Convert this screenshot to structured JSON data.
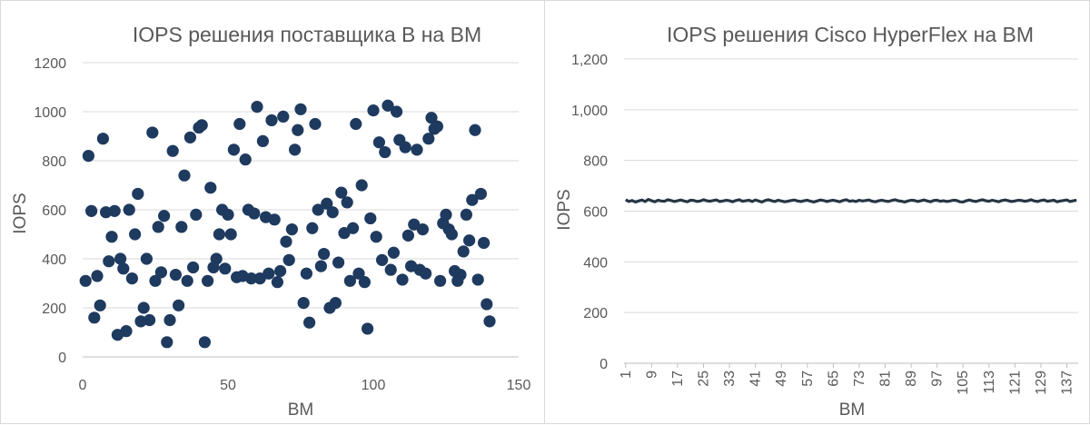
{
  "chart_data": [
    {
      "type": "scatter",
      "title": "IOPS решения поставщика B на ВМ",
      "xlabel": "ВМ",
      "ylabel": "IOPS",
      "xlim": [
        0,
        150
      ],
      "ylim": [
        0,
        1200
      ],
      "x_ticks": [
        "0",
        "50",
        "100",
        "150"
      ],
      "y_ticks": [
        "0",
        "200",
        "400",
        "600",
        "800",
        "1000",
        "1200"
      ],
      "grid": true,
      "marker_color": "#1f3a5f",
      "series": [
        {
          "points": [
            [
              1,
              310
            ],
            [
              2,
              820
            ],
            [
              3,
              595
            ],
            [
              4,
              160
            ],
            [
              5,
              330
            ],
            [
              6,
              210
            ],
            [
              7,
              890
            ],
            [
              8,
              590
            ],
            [
              9,
              390
            ],
            [
              10,
              490
            ],
            [
              11,
              595
            ],
            [
              12,
              90
            ],
            [
              13,
              400
            ],
            [
              14,
              360
            ],
            [
              15,
              105
            ],
            [
              16,
              600
            ],
            [
              17,
              320
            ],
            [
              18,
              500
            ],
            [
              19,
              665
            ],
            [
              20,
              145
            ],
            [
              21,
              200
            ],
            [
              22,
              400
            ],
            [
              23,
              150
            ],
            [
              24,
              915
            ],
            [
              25,
              310
            ],
            [
              26,
              530
            ],
            [
              27,
              345
            ],
            [
              28,
              575
            ],
            [
              29,
              60
            ],
            [
              30,
              150
            ],
            [
              31,
              840
            ],
            [
              32,
              335
            ],
            [
              33,
              210
            ],
            [
              34,
              530
            ],
            [
              35,
              740
            ],
            [
              36,
              310
            ],
            [
              37,
              895
            ],
            [
              38,
              365
            ],
            [
              39,
              580
            ],
            [
              40,
              935
            ],
            [
              41,
              945
            ],
            [
              42,
              60
            ],
            [
              43,
              310
            ],
            [
              44,
              690
            ],
            [
              45,
              365
            ],
            [
              46,
              400
            ],
            [
              47,
              500
            ],
            [
              48,
              600
            ],
            [
              49,
              360
            ],
            [
              50,
              580
            ],
            [
              51,
              500
            ],
            [
              52,
              845
            ],
            [
              53,
              325
            ],
            [
              54,
              950
            ],
            [
              55,
              330
            ],
            [
              56,
              805
            ],
            [
              57,
              600
            ],
            [
              58,
              320
            ],
            [
              59,
              585
            ],
            [
              60,
              1020
            ],
            [
              61,
              320
            ],
            [
              62,
              880
            ],
            [
              63,
              570
            ],
            [
              64,
              340
            ],
            [
              65,
              965
            ],
            [
              66,
              560
            ],
            [
              67,
              305
            ],
            [
              68,
              350
            ],
            [
              69,
              980
            ],
            [
              70,
              470
            ],
            [
              71,
              395
            ],
            [
              72,
              520
            ],
            [
              73,
              845
            ],
            [
              74,
              925
            ],
            [
              75,
              1010
            ],
            [
              76,
              220
            ],
            [
              77,
              340
            ],
            [
              78,
              140
            ],
            [
              79,
              525
            ],
            [
              80,
              950
            ],
            [
              81,
              600
            ],
            [
              82,
              370
            ],
            [
              83,
              420
            ],
            [
              84,
              625
            ],
            [
              85,
              200
            ],
            [
              86,
              590
            ],
            [
              87,
              220
            ],
            [
              88,
              385
            ],
            [
              89,
              670
            ],
            [
              90,
              505
            ],
            [
              91,
              630
            ],
            [
              92,
              310
            ],
            [
              93,
              525
            ],
            [
              94,
              950
            ],
            [
              95,
              340
            ],
            [
              96,
              700
            ],
            [
              97,
              305
            ],
            [
              98,
              115
            ],
            [
              99,
              565
            ],
            [
              100,
              1005
            ],
            [
              101,
              490
            ],
            [
              102,
              875
            ],
            [
              103,
              395
            ],
            [
              104,
              835
            ],
            [
              105,
              1025
            ],
            [
              106,
              355
            ],
            [
              107,
              425
            ],
            [
              108,
              1000
            ],
            [
              109,
              885
            ],
            [
              110,
              315
            ],
            [
              111,
              855
            ],
            [
              112,
              495
            ],
            [
              113,
              370
            ],
            [
              114,
              540
            ],
            [
              115,
              845
            ],
            [
              116,
              355
            ],
            [
              117,
              520
            ],
            [
              118,
              340
            ],
            [
              119,
              890
            ],
            [
              120,
              975
            ],
            [
              121,
              930
            ],
            [
              122,
              940
            ],
            [
              123,
              310
            ],
            [
              124,
              545
            ],
            [
              125,
              580
            ],
            [
              126,
              520
            ],
            [
              127,
              500
            ],
            [
              128,
              350
            ],
            [
              129,
              310
            ],
            [
              130,
              335
            ],
            [
              131,
              430
            ],
            [
              132,
              580
            ],
            [
              133,
              475
            ],
            [
              134,
              640
            ],
            [
              135,
              925
            ],
            [
              136,
              315
            ],
            [
              137,
              665
            ],
            [
              138,
              465
            ],
            [
              139,
              215
            ],
            [
              140,
              145
            ]
          ]
        }
      ]
    },
    {
      "type": "line",
      "title": "IOPS решения Cisco HyperFlex на ВМ",
      "xlabel": "ВМ",
      "ylabel": "IOPS",
      "ylim": [
        0,
        1200
      ],
      "y_ticks": [
        "0",
        "200",
        "400",
        "600",
        "800",
        "1,000",
        "1,200"
      ],
      "x_ticks": [
        "1",
        "9",
        "17",
        "25",
        "33",
        "41",
        "49",
        "57",
        "65",
        "73",
        "81",
        "89",
        "97",
        "105",
        "113",
        "121",
        "129",
        "137"
      ],
      "x_count": 140,
      "grid": true,
      "line_color": "#263646",
      "series": [
        {
          "values": [
            645,
            638,
            642,
            636,
            640,
            644,
            638,
            646,
            641,
            637,
            643,
            640,
            639,
            645,
            642,
            638,
            641,
            644,
            640,
            637,
            643,
            642,
            638,
            640,
            645,
            641,
            639,
            642,
            644,
            638,
            640,
            643,
            641,
            637,
            642,
            645,
            639,
            641,
            643,
            638,
            644,
            640,
            636,
            642,
            645,
            641,
            638,
            643,
            640,
            637,
            639,
            642,
            644,
            640,
            638,
            641,
            643,
            639,
            636,
            640,
            644,
            642,
            638,
            641,
            643,
            640,
            637,
            642,
            645,
            639,
            641,
            638,
            643,
            640,
            642,
            644,
            639,
            637,
            641,
            643,
            640,
            638,
            642,
            645,
            641,
            639,
            636,
            640,
            643,
            642,
            638,
            641,
            644,
            640,
            637,
            642,
            643,
            639,
            641,
            638,
            640,
            643,
            642,
            637,
            636,
            641,
            644,
            640,
            638,
            642,
            645,
            641,
            639,
            643,
            640,
            637,
            642,
            644,
            641,
            638,
            640,
            643,
            642,
            639,
            641,
            645,
            640,
            638,
            642,
            644,
            639,
            641,
            643,
            637,
            640,
            642,
            644,
            638,
            641,
            643
          ]
        }
      ]
    }
  ]
}
